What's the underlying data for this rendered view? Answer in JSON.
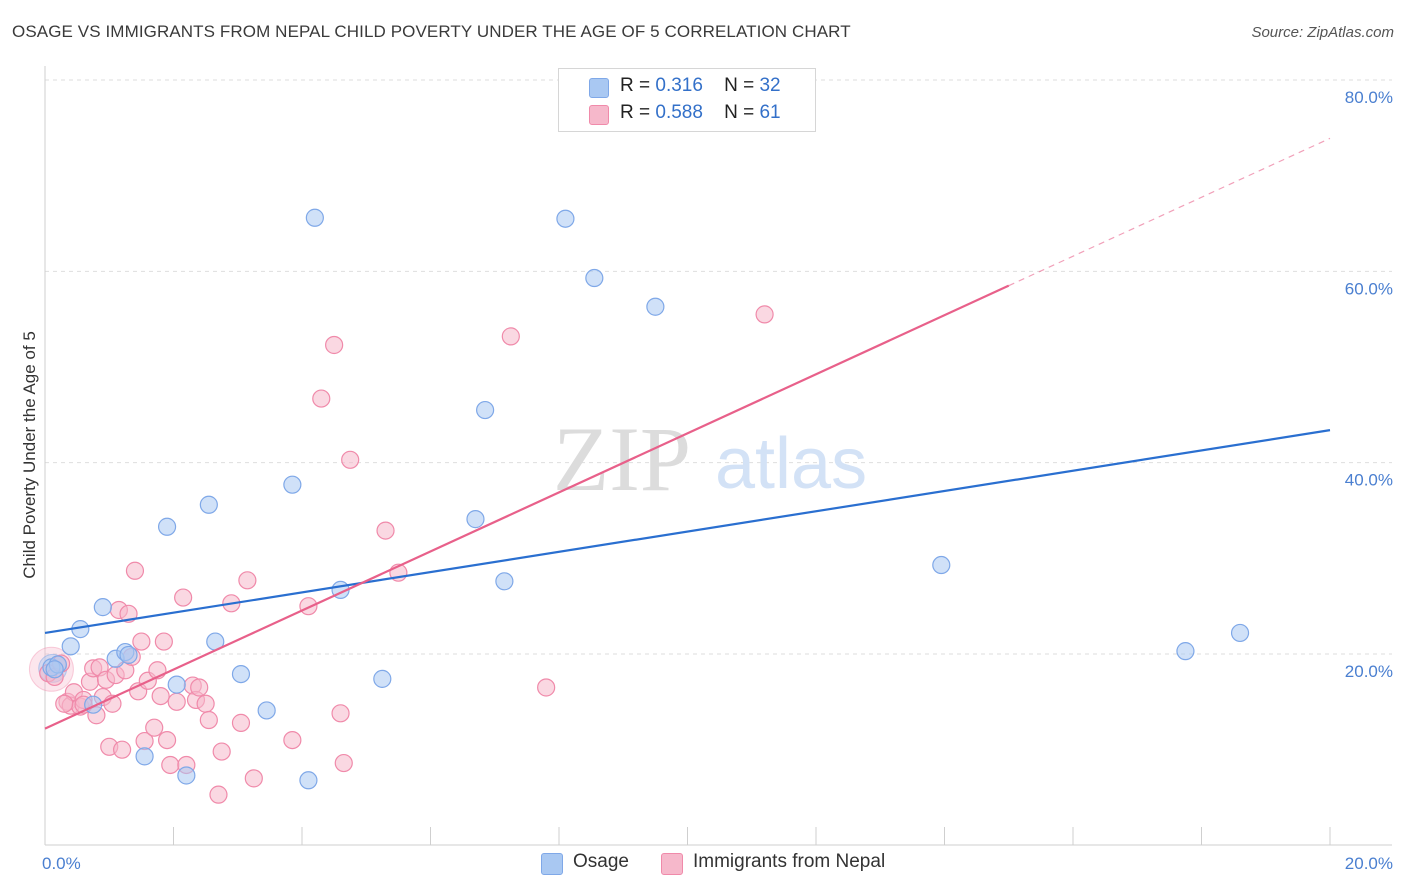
{
  "title": "OSAGE VS IMMIGRANTS FROM NEPAL CHILD POVERTY UNDER THE AGE OF 5 CORRELATION CHART",
  "source": "Source: ZipAtlas.com",
  "watermark": {
    "zip": "ZIP",
    "atlas": "atlas"
  },
  "legend": {
    "rows": [
      {
        "r_label": "R =",
        "r_value": "0.316",
        "n_label": "N =",
        "n_value": "32",
        "color": "#a9c8f2"
      },
      {
        "r_label": "R =",
        "r_value": "0.588",
        "n_label": "N =",
        "n_value": "61",
        "color": "#f6b8cb"
      }
    ]
  },
  "bottom_legend": {
    "series1": "Osage",
    "series2": "Immigrants from Nepal"
  },
  "chart_data": {
    "type": "scatter",
    "title": "OSAGE VS IMMIGRANTS FROM NEPAL CHILD POVERTY UNDER THE AGE OF 5 CORRELATION CHART",
    "xlabel": "",
    "ylabel": "Child Poverty Under the Age of 5",
    "xlim": [
      0,
      20
    ],
    "ylim": [
      0,
      82
    ],
    "x_tick_labels": [
      {
        "value": 0,
        "label": "0.0%"
      },
      {
        "value": 20,
        "label": "20.0%"
      }
    ],
    "y_tick_labels": [
      {
        "value": 20,
        "label": "20.0%"
      },
      {
        "value": 40,
        "label": "40.0%"
      },
      {
        "value": 60,
        "label": "60.0%"
      },
      {
        "value": 80,
        "label": "80.0%"
      }
    ],
    "grid": true,
    "legend_position": "top-center",
    "series": [
      {
        "name": "Osage",
        "color": "#7fa8e8",
        "fill": "#a9c8f2",
        "trend_color": "#2a6fd0",
        "r": 0.316,
        "n": 32,
        "trend": {
          "x": [
            0,
            20
          ],
          "y": [
            22.2,
            43.4
          ]
        },
        "points": [
          [
            0.1,
            18.6
          ],
          [
            0.2,
            18.9
          ],
          [
            0.4,
            20.8
          ],
          [
            0.55,
            22.6
          ],
          [
            0.75,
            14.7
          ],
          [
            0.9,
            24.9
          ],
          [
            1.1,
            19.5
          ],
          [
            1.25,
            20.2
          ],
          [
            1.3,
            19.9
          ],
          [
            1.55,
            9.3
          ],
          [
            1.9,
            33.3
          ],
          [
            2.05,
            16.8
          ],
          [
            2.2,
            7.3
          ],
          [
            2.55,
            35.6
          ],
          [
            2.65,
            21.3
          ],
          [
            3.05,
            17.9
          ],
          [
            3.45,
            14.1
          ],
          [
            3.85,
            37.7
          ],
          [
            4.2,
            65.6
          ],
          [
            4.1,
            6.8
          ],
          [
            4.6,
            26.7
          ],
          [
            5.25,
            17.4
          ],
          [
            6.7,
            34.1
          ],
          [
            6.85,
            45.5
          ],
          [
            7.15,
            27.6
          ],
          [
            8.1,
            65.5
          ],
          [
            8.55,
            59.3
          ],
          [
            9.5,
            56.3
          ],
          [
            13.95,
            29.3
          ],
          [
            17.75,
            20.3
          ],
          [
            18.6,
            22.2
          ],
          [
            0.15,
            18.4
          ]
        ]
      },
      {
        "name": "Immigrants from Nepal",
        "color": "#f08aaa",
        "fill": "#f6b8cb",
        "trend_color": "#e8608a",
        "r": 0.588,
        "n": 61,
        "trend": {
          "x": [
            0,
            15
          ],
          "y": [
            12.2,
            58.5
          ]
        },
        "trend_dashed": {
          "x": [
            15,
            20
          ],
          "y": [
            58.5,
            73.9
          ]
        },
        "points": [
          [
            0.05,
            18.0
          ],
          [
            0.15,
            17.6
          ],
          [
            0.25,
            19.0
          ],
          [
            0.35,
            15.0
          ],
          [
            0.4,
            14.6
          ],
          [
            0.45,
            16.0
          ],
          [
            0.55,
            14.5
          ],
          [
            0.6,
            15.2
          ],
          [
            0.7,
            17.1
          ],
          [
            0.75,
            18.5
          ],
          [
            0.8,
            13.6
          ],
          [
            0.85,
            18.6
          ],
          [
            0.9,
            15.5
          ],
          [
            0.95,
            17.3
          ],
          [
            1.0,
            10.3
          ],
          [
            1.05,
            14.8
          ],
          [
            1.1,
            17.8
          ],
          [
            1.15,
            24.6
          ],
          [
            1.2,
            10.0
          ],
          [
            1.25,
            18.3
          ],
          [
            1.3,
            24.2
          ],
          [
            1.35,
            19.7
          ],
          [
            1.4,
            28.7
          ],
          [
            1.45,
            16.1
          ],
          [
            1.5,
            21.3
          ],
          [
            1.55,
            10.9
          ],
          [
            1.6,
            17.2
          ],
          [
            1.7,
            12.3
          ],
          [
            1.75,
            18.3
          ],
          [
            1.8,
            15.6
          ],
          [
            1.85,
            21.3
          ],
          [
            1.9,
            11.0
          ],
          [
            1.95,
            8.4
          ],
          [
            2.05,
            15.0
          ],
          [
            2.15,
            25.9
          ],
          [
            2.2,
            8.4
          ],
          [
            2.3,
            16.7
          ],
          [
            2.35,
            15.2
          ],
          [
            2.4,
            16.5
          ],
          [
            2.5,
            14.8
          ],
          [
            2.55,
            13.1
          ],
          [
            2.7,
            5.3
          ],
          [
            2.75,
            9.8
          ],
          [
            2.9,
            25.3
          ],
          [
            3.05,
            12.8
          ],
          [
            3.15,
            27.7
          ],
          [
            3.25,
            7.0
          ],
          [
            3.85,
            11.0
          ],
          [
            4.1,
            25.0
          ],
          [
            4.3,
            46.7
          ],
          [
            4.5,
            52.3
          ],
          [
            4.6,
            13.8
          ],
          [
            4.65,
            8.6
          ],
          [
            4.75,
            40.3
          ],
          [
            5.3,
            32.9
          ],
          [
            5.5,
            28.5
          ],
          [
            7.25,
            53.2
          ],
          [
            7.8,
            16.5
          ],
          [
            11.2,
            55.5
          ],
          [
            0.3,
            14.8
          ],
          [
            0.6,
            14.7
          ]
        ]
      }
    ]
  }
}
